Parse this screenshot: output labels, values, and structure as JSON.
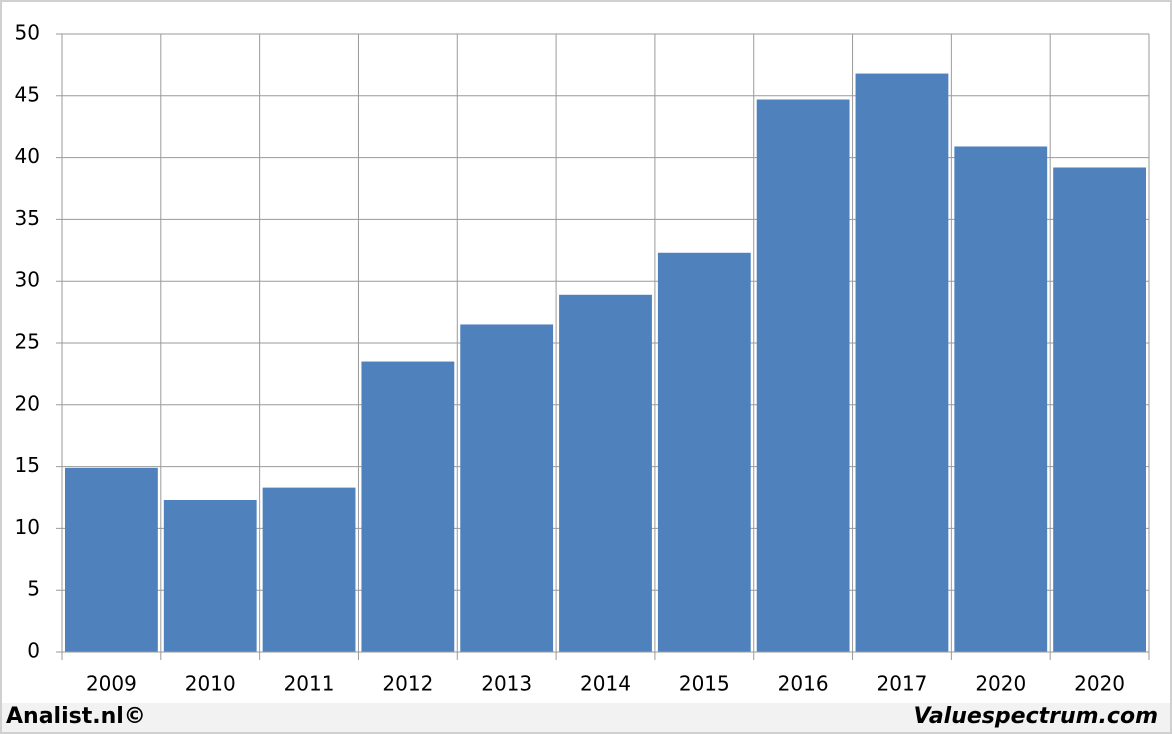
{
  "chart_data": {
    "type": "bar",
    "categories": [
      "2009",
      "2010",
      "2011",
      "2012",
      "2013",
      "2014",
      "2015",
      "2016",
      "2017",
      "2020",
      "2020"
    ],
    "values": [
      14.9,
      12.3,
      13.3,
      23.5,
      26.5,
      28.9,
      32.3,
      44.7,
      46.8,
      40.9,
      39.2
    ],
    "color": "#4f81bd",
    "ylim": [
      0,
      50
    ],
    "yticks": [
      0,
      5,
      10,
      15,
      20,
      25,
      30,
      35,
      40,
      45,
      50
    ],
    "grid": true,
    "source_left": "Analist.nl©",
    "source_right": "Valuespectrum.com"
  }
}
